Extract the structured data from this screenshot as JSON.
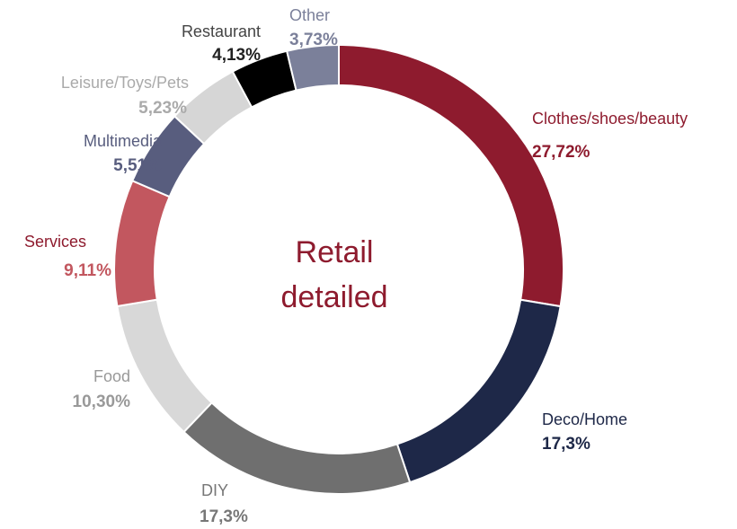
{
  "chart_data": {
    "type": "donut",
    "center_label": [
      "Retail",
      "detailed"
    ],
    "categories": [
      "Clothes/shoes/beauty",
      "Deco/Home",
      "DIY",
      "Food",
      "Services",
      "Multimedia",
      "Leisure/Toys/Pets",
      "Restaurant",
      "Other"
    ],
    "values": [
      27.72,
      17.3,
      17.3,
      10.3,
      9.11,
      5.51,
      5.23,
      4.13,
      3.73
    ],
    "value_labels": [
      "27,72%",
      "17,3%",
      "17,3%",
      "10,30%",
      "9,11%",
      "5,51%",
      "5,23%",
      "4,13%",
      "3,73%"
    ],
    "colors": [
      "#8e1b2e",
      "#1e2848",
      "#6f6f6f",
      "#d8d8d8",
      "#c2575f",
      "#585d7e",
      "#d6d6d6",
      "#000000",
      "#7b809a"
    ]
  }
}
